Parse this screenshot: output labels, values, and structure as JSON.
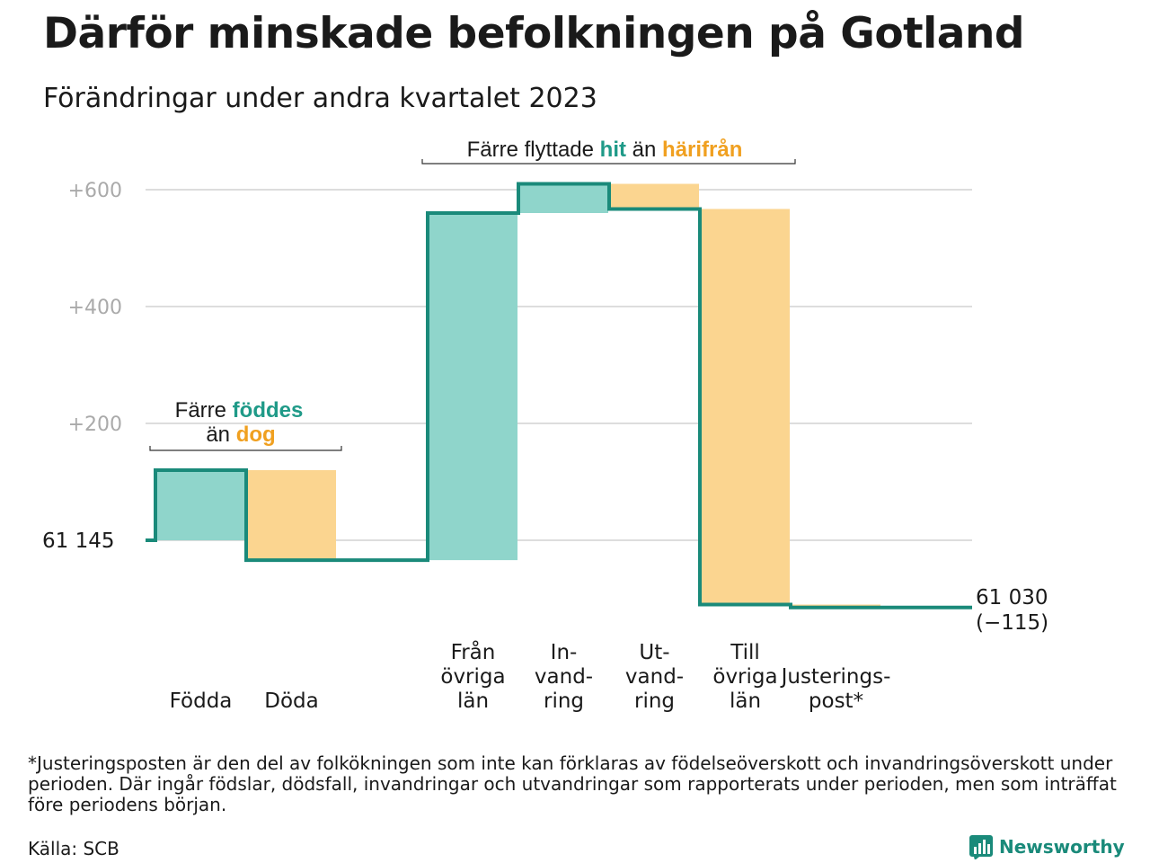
{
  "title": "Därför minskade befolkningen på Gotland",
  "subtitle": "Förändringar under andra kvartalet 2023",
  "footnote": "*Justeringsposten är den del av folkökningen som inte kan förklaras av födelseöverskott och invandringsöverskott under perioden. Där ingår födslar, dödsfall, invandringar och utvandringar som rapporterats under perioden, men som inträffat före periodens början.",
  "source": "Källa: SCB",
  "brand": "Newsworthy",
  "colors": {
    "increase": "#8fd5cb",
    "decrease": "#fbd590",
    "line": "#1a8a7a",
    "teal_text": "#1f9a88",
    "orange_text": "#f0a020",
    "grid": "#dddddd",
    "tick": "#aaaaaa"
  },
  "annotations": {
    "births": {
      "line1_pre": "Färre ",
      "line1_hl": "föddes",
      "line2_pre": "än ",
      "line2_hl": "dog"
    },
    "moves": {
      "pre": "Färre flyttade ",
      "hl1": "hit",
      "mid": " än ",
      "hl2": "härifrån"
    }
  },
  "chart_data": {
    "type": "waterfall",
    "title": "Därför minskade befolkningen på Gotland",
    "subtitle": "Förändringar under andra kvartalet 2023",
    "start_label": "61  145",
    "start_value": 61145,
    "end_label_line1": "61 030",
    "end_label_line2": "(−115)",
    "end_value": 61030,
    "total_change": -115,
    "yticks": [
      {
        "value": 200,
        "label": "+200"
      },
      {
        "value": 400,
        "label": "+400"
      },
      {
        "value": 600,
        "label": "+600"
      }
    ],
    "ylim": [
      -140,
      640
    ],
    "grid": true,
    "categories": [
      {
        "label": [
          "Födda"
        ],
        "change": 120
      },
      {
        "label": [
          "Döda"
        ],
        "change": -154
      },
      {
        "label": [
          "Från",
          "övriga",
          "län"
        ],
        "change": 594
      },
      {
        "label": [
          "In-",
          "vand-",
          "ring"
        ],
        "change": 50
      },
      {
        "label": [
          "Ut-",
          "vand-",
          "ring"
        ],
        "change": -43
      },
      {
        "label": [
          "Till",
          "övriga",
          "län"
        ],
        "change": -677
      },
      {
        "label": [
          "Justerings-",
          "post*"
        ],
        "change": -5
      }
    ]
  }
}
